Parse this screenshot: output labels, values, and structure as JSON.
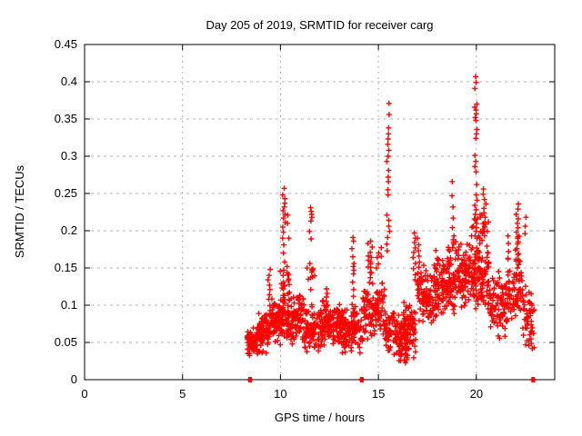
{
  "chart_data": {
    "type": "scatter",
    "title": "Day 205 of 2019, SRMTID for receiver carg",
    "xlabel": "GPS time / hours",
    "ylabel": "SRMTID / TECUs",
    "xlim": [
      0,
      24
    ],
    "ylim": [
      0,
      0.45
    ],
    "x_ticks": [
      {
        "v": 0,
        "label": "0"
      },
      {
        "v": 5,
        "label": "5"
      },
      {
        "v": 10,
        "label": "10"
      },
      {
        "v": 15,
        "label": "15"
      },
      {
        "v": 20,
        "label": "20"
      }
    ],
    "y_ticks": [
      {
        "v": 0,
        "label": "0"
      },
      {
        "v": 0.05,
        "label": "0.05"
      },
      {
        "v": 0.1,
        "label": "0.1"
      },
      {
        "v": 0.15,
        "label": "0.15"
      },
      {
        "v": 0.2,
        "label": "0.2"
      },
      {
        "v": 0.25,
        "label": "0.25"
      },
      {
        "v": 0.3,
        "label": "0.3"
      },
      {
        "v": 0.35,
        "label": "0.35"
      },
      {
        "v": 0.4,
        "label": "0.4"
      },
      {
        "v": 0.45,
        "label": "0.45"
      }
    ],
    "grid": true,
    "legend": "none",
    "marker": "plus",
    "marker_color": "#ff0000",
    "grid_color": "#b0b0b0",
    "axis_color": "#000000",
    "seed": 42,
    "zero_points_x": [
      8.45,
      14.15,
      22.9
    ],
    "spikes": [
      {
        "x": 9.42,
        "ys": [
          0.148,
          0.14,
          0.134,
          0.127,
          0.121,
          0.114,
          0.108
        ]
      },
      {
        "x": 10.18,
        "ys": [
          0.257,
          0.248,
          0.243,
          0.237,
          0.232,
          0.227,
          0.222,
          0.217,
          0.211,
          0.205,
          0.198,
          0.19,
          0.181,
          0.17,
          0.158,
          0.147,
          0.14,
          0.131,
          0.122,
          0.113
        ]
      },
      {
        "x": 10.38,
        "ys": [
          0.221,
          0.21,
          0.19,
          0.152,
          0.133
        ]
      },
      {
        "x": 11.55,
        "ys": [
          0.231,
          0.226,
          0.222,
          0.218,
          0.213,
          0.199,
          0.189,
          0.156,
          0.137,
          0.121
        ]
      },
      {
        "x": 12.35,
        "ys": [
          0.122,
          0.116,
          0.111,
          0.105,
          0.1
        ]
      },
      {
        "x": 13.7,
        "ys": [
          0.191,
          0.186,
          0.176,
          0.165,
          0.156,
          0.152,
          0.147,
          0.142,
          0.131,
          0.121,
          0.112
        ]
      },
      {
        "x": 14.65,
        "ys": [
          0.186,
          0.178,
          0.171,
          0.164,
          0.158,
          0.151,
          0.144,
          0.137,
          0.129
        ]
      },
      {
        "x": 15.5,
        "ys": [
          0.371,
          0.356,
          0.338,
          0.33,
          0.323,
          0.316,
          0.308,
          0.3,
          0.293,
          0.281,
          0.272,
          0.266,
          0.255,
          0.248,
          0.221,
          0.214,
          0.206,
          0.199,
          0.191,
          0.182,
          0.173
        ]
      },
      {
        "x": 16.82,
        "ys": [
          0.197,
          0.19,
          0.184,
          0.177,
          0.171,
          0.164,
          0.156,
          0.149,
          0.141,
          0.134
        ]
      },
      {
        "x": 17.05,
        "ys": [
          0.19,
          0.181,
          0.173,
          0.166,
          0.158,
          0.151,
          0.143,
          0.136,
          0.128,
          0.122
        ]
      },
      {
        "x": 18.8,
        "ys": [
          0.266,
          0.247,
          0.232,
          0.217,
          0.204,
          0.193,
          0.182
        ]
      },
      {
        "x": 19.98,
        "ys": [
          0.407,
          0.399,
          0.391,
          0.37,
          0.366,
          0.362,
          0.357,
          0.352,
          0.348,
          0.336,
          0.33,
          0.324,
          0.301,
          0.293,
          0.286,
          0.279,
          0.262,
          0.248,
          0.241,
          0.234,
          0.228,
          0.222,
          0.216,
          0.21,
          0.204,
          0.199
        ]
      },
      {
        "x": 20.42,
        "ys": [
          0.256,
          0.249,
          0.242,
          0.236,
          0.23,
          0.224,
          0.218,
          0.211,
          0.205,
          0.199
        ]
      },
      {
        "x": 21.6,
        "ys": [
          0.193,
          0.183,
          0.172,
          0.162
        ]
      },
      {
        "x": 22.08,
        "ys": [
          0.236,
          0.229,
          0.222,
          0.216,
          0.21,
          0.204,
          0.198,
          0.192,
          0.185,
          0.176,
          0.168,
          0.159,
          0.15,
          0.141
        ]
      },
      {
        "x": 22.55,
        "ys": [
          0.218,
          0.206,
          0.196
        ]
      }
    ],
    "bands": [
      {
        "x0": 8.3,
        "x1": 8.75,
        "ymin": 0.027,
        "ymax": 0.072,
        "n": 60
      },
      {
        "x0": 8.75,
        "x1": 9.45,
        "ymin": 0.032,
        "ymax": 0.092,
        "n": 85
      },
      {
        "x0": 9.45,
        "x1": 10.15,
        "ymin": 0.045,
        "ymax": 0.115,
        "n": 90
      },
      {
        "x0": 10.15,
        "x1": 11.2,
        "ymin": 0.04,
        "ymax": 0.12,
        "n": 125
      },
      {
        "x0": 11.2,
        "x1": 12.15,
        "ymin": 0.035,
        "ymax": 0.105,
        "n": 105
      },
      {
        "x0": 12.15,
        "x1": 13.15,
        "ymin": 0.04,
        "ymax": 0.115,
        "n": 115
      },
      {
        "x0": 13.15,
        "x1": 14.2,
        "ymin": 0.032,
        "ymax": 0.102,
        "n": 115
      },
      {
        "x0": 14.2,
        "x1": 15.35,
        "ymin": 0.05,
        "ymax": 0.135,
        "n": 110
      },
      {
        "x0": 15.35,
        "x1": 16.1,
        "ymin": 0.03,
        "ymax": 0.097,
        "n": 70
      },
      {
        "x0": 16.1,
        "x1": 16.95,
        "ymin": 0.027,
        "ymax": 0.105,
        "n": 90
      },
      {
        "x0": 16.95,
        "x1": 18.0,
        "ymin": 0.07,
        "ymax": 0.158,
        "n": 110
      },
      {
        "x0": 18.0,
        "x1": 19.0,
        "ymin": 0.082,
        "ymax": 0.168,
        "n": 110
      },
      {
        "x0": 19.0,
        "x1": 19.9,
        "ymin": 0.092,
        "ymax": 0.188,
        "n": 105
      },
      {
        "x0": 19.9,
        "x1": 20.65,
        "ymin": 0.085,
        "ymax": 0.185,
        "n": 90
      },
      {
        "x0": 20.65,
        "x1": 21.6,
        "ymin": 0.052,
        "ymax": 0.148,
        "n": 90
      },
      {
        "x0": 21.6,
        "x1": 22.35,
        "ymin": 0.075,
        "ymax": 0.165,
        "n": 65
      },
      {
        "x0": 22.35,
        "x1": 23.0,
        "ymin": 0.035,
        "ymax": 0.128,
        "n": 52
      },
      {
        "x0": 9.9,
        "x1": 10.45,
        "ymin": 0.115,
        "ymax": 0.16,
        "n": 10
      },
      {
        "x0": 11.35,
        "x1": 11.75,
        "ymin": 0.11,
        "ymax": 0.155,
        "n": 8
      },
      {
        "x0": 14.45,
        "x1": 15.15,
        "ymin": 0.12,
        "ymax": 0.185,
        "n": 14
      },
      {
        "x0": 16.05,
        "x1": 16.55,
        "ymin": 0.02,
        "ymax": 0.055,
        "n": 28
      },
      {
        "x0": 17.8,
        "x1": 18.15,
        "ymin": 0.135,
        "ymax": 0.18,
        "n": 8
      },
      {
        "x0": 18.55,
        "x1": 19.05,
        "ymin": 0.145,
        "ymax": 0.2,
        "n": 10
      },
      {
        "x0": 19.75,
        "x1": 20.25,
        "ymin": 0.165,
        "ymax": 0.24,
        "n": 16
      },
      {
        "x0": 20.28,
        "x1": 20.65,
        "ymin": 0.16,
        "ymax": 0.225,
        "n": 12
      },
      {
        "x0": 21.95,
        "x1": 22.25,
        "ymin": 0.12,
        "ymax": 0.2,
        "n": 10
      }
    ]
  }
}
